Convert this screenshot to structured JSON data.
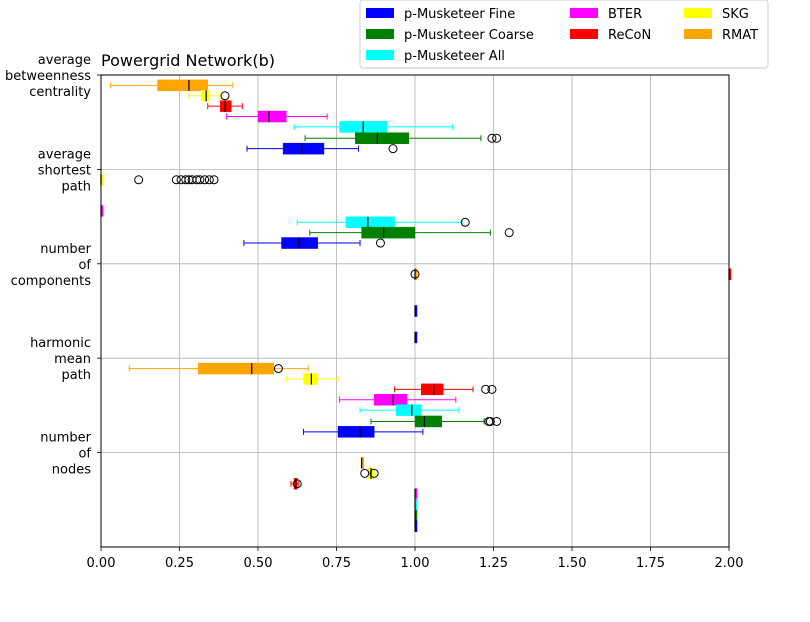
{
  "chart_data": {
    "type": "boxplot",
    "title": "Powergrid Network(b)",
    "xlim": [
      0,
      2.0
    ],
    "xticks": [
      "0.00",
      "0.25",
      "0.50",
      "0.75",
      "1.00",
      "1.25",
      "1.50",
      "1.75",
      "2.00"
    ],
    "xtick_values": [
      0,
      0.25,
      0.5,
      0.75,
      1.0,
      1.25,
      1.5,
      1.75,
      2.0
    ],
    "grid": true,
    "legend_position": "top-right",
    "legend": [
      {
        "name": "p-Musketeer Fine",
        "color": "#0000ff"
      },
      {
        "name": "p-Musketeer Coarse",
        "color": "#008000"
      },
      {
        "name": "p-Musketeer All",
        "color": "#00ffff"
      },
      {
        "name": "BTER",
        "color": "#ff00ff"
      },
      {
        "name": "ReCoN",
        "color": "#ff0000"
      },
      {
        "name": "SKG",
        "color": "#ffff00"
      },
      {
        "name": "RMAT",
        "color": "#ffa500"
      }
    ],
    "categories": [
      {
        "lines": [
          "average",
          "betweenness",
          "centrality"
        ],
        "pos": 0
      },
      {
        "lines": [
          "average",
          "shortest",
          "path"
        ],
        "pos": 1
      },
      {
        "lines": [
          "number",
          "of",
          "components"
        ],
        "pos": 2
      },
      {
        "lines": [
          "harmonic",
          "mean",
          "path"
        ],
        "pos": 3
      },
      {
        "lines": [
          "number",
          "of",
          "nodes"
        ],
        "pos": 4
      }
    ],
    "series": [
      {
        "category": 0,
        "offset": 0.11,
        "color": "#ffa500",
        "q1": 0.18,
        "median": 0.28,
        "q3": 0.34,
        "whislo": 0.03,
        "whishi": 0.42,
        "fliers": []
      },
      {
        "category": 0,
        "offset": 0.22,
        "color": "#ffff00",
        "q1": 0.32,
        "median": 0.335,
        "q3": 0.345,
        "whislo": 0.28,
        "whishi": 0.38,
        "fliers": [
          0.395
        ]
      },
      {
        "category": 0,
        "offset": 0.33,
        "color": "#ff0000",
        "q1": 0.38,
        "median": 0.395,
        "q3": 0.415,
        "whislo": 0.34,
        "whishi": 0.45,
        "fliers": []
      },
      {
        "category": 0,
        "offset": 0.44,
        "color": "#ff00ff",
        "q1": 0.5,
        "median": 0.535,
        "q3": 0.59,
        "whislo": 0.4,
        "whishi": 0.72,
        "fliers": []
      },
      {
        "category": 0,
        "offset": 0.55,
        "color": "#00ffff",
        "q1": 0.76,
        "median": 0.835,
        "q3": 0.91,
        "whislo": 0.615,
        "whishi": 1.12,
        "fliers": []
      },
      {
        "category": 0,
        "offset": 0.67,
        "color": "#008000",
        "q1": 0.81,
        "median": 0.88,
        "q3": 0.98,
        "whislo": 0.65,
        "whishi": 1.21,
        "fliers": [
          1.245,
          1.26
        ]
      },
      {
        "category": 0,
        "offset": 0.78,
        "color": "#0000ff",
        "q1": 0.58,
        "median": 0.64,
        "q3": 0.71,
        "whislo": 0.465,
        "whishi": 0.82,
        "fliers": [
          0.93
        ]
      },
      {
        "category": 1,
        "offset": 0.11,
        "color": "#ffa500",
        "q1": 0.0,
        "median": 0.0,
        "q3": 0.0,
        "whislo": 0.0,
        "whishi": 0.0,
        "fliers": []
      },
      {
        "category": 1,
        "offset": 0.11,
        "color": "#ffff00",
        "q1": 0.0,
        "median": 0.0,
        "q3": 0.0,
        "whislo": 0.0,
        "whishi": 0.0,
        "fliers": [
          0.12,
          0.24,
          0.255,
          0.27,
          0.28,
          0.29,
          0.305,
          0.315,
          0.33,
          0.345,
          0.36
        ]
      },
      {
        "category": 1,
        "offset": 0.44,
        "color": "#ff00ff",
        "q1": 0.0,
        "median": 0.0,
        "q3": 0.0,
        "whislo": 0.0,
        "whishi": 0.0,
        "fliers": []
      },
      {
        "category": 1,
        "offset": 0.56,
        "color": "#00ffff",
        "q1": 0.78,
        "median": 0.85,
        "q3": 0.935,
        "whislo": 0.625,
        "whishi": 1.15,
        "fliers": [
          1.16
        ]
      },
      {
        "category": 1,
        "offset": 0.67,
        "color": "#008000",
        "q1": 0.83,
        "median": 0.9,
        "q3": 1.0,
        "whislo": 0.665,
        "whishi": 1.24,
        "fliers": [
          1.3
        ]
      },
      {
        "category": 1,
        "offset": 0.78,
        "color": "#0000ff",
        "q1": 0.575,
        "median": 0.63,
        "q3": 0.69,
        "whislo": 0.455,
        "whishi": 0.825,
        "fliers": [
          0.89
        ]
      },
      {
        "category": 2,
        "offset": 0.11,
        "color": "#ffa500",
        "q1": 1.0,
        "median": 1.0,
        "q3": 1.0,
        "whislo": 1.0,
        "whishi": 1.0,
        "fliers": [
          1.0
        ]
      },
      {
        "category": 2,
        "offset": 0.11,
        "color": "#ff0000",
        "q1": 2.0,
        "median": 2.0,
        "q3": 2.0,
        "whislo": 2.0,
        "whishi": 2.0,
        "fliers": []
      },
      {
        "category": 2,
        "offset": 0.5,
        "color": "#0000ff",
        "q1": 1.0,
        "median": 1.0,
        "q3": 1.0,
        "whislo": 1.0,
        "whishi": 1.0,
        "fliers": []
      },
      {
        "category": 2,
        "offset": 0.78,
        "color": "#0000ff",
        "q1": 1.0,
        "median": 1.0,
        "q3": 1.0,
        "whislo": 1.0,
        "whishi": 1.0,
        "fliers": []
      },
      {
        "category": 3,
        "offset": 0.11,
        "color": "#ffa500",
        "q1": 0.31,
        "median": 0.48,
        "q3": 0.55,
        "whislo": 0.09,
        "whishi": 0.66,
        "fliers": [
          0.565
        ]
      },
      {
        "category": 3,
        "offset": 0.22,
        "color": "#ffff00",
        "q1": 0.645,
        "median": 0.67,
        "q3": 0.69,
        "whislo": 0.59,
        "whishi": 0.755,
        "fliers": []
      },
      {
        "category": 3,
        "offset": 0.33,
        "color": "#ff0000",
        "q1": 1.02,
        "median": 1.06,
        "q3": 1.09,
        "whislo": 0.935,
        "whishi": 1.185,
        "fliers": [
          1.225,
          1.245
        ]
      },
      {
        "category": 3,
        "offset": 0.44,
        "color": "#ff00ff",
        "q1": 0.87,
        "median": 0.93,
        "q3": 0.975,
        "whislo": 0.76,
        "whishi": 1.13,
        "fliers": []
      },
      {
        "category": 3,
        "offset": 0.55,
        "color": "#00ffff",
        "q1": 0.94,
        "median": 0.99,
        "q3": 1.02,
        "whislo": 0.825,
        "whishi": 1.14,
        "fliers": []
      },
      {
        "category": 3,
        "offset": 0.67,
        "color": "#008000",
        "q1": 1.0,
        "median": 1.03,
        "q3": 1.085,
        "whislo": 0.86,
        "whishi": 1.22,
        "fliers": [
          1.235,
          1.24,
          1.26
        ]
      },
      {
        "category": 3,
        "offset": 0.78,
        "color": "#0000ff",
        "q1": 0.755,
        "median": 0.825,
        "q3": 0.87,
        "whislo": 0.645,
        "whishi": 1.025,
        "fliers": []
      },
      {
        "category": 4,
        "offset": 0.11,
        "color": "#ffa500",
        "q1": 0.83,
        "median": 0.83,
        "q3": 0.83,
        "whislo": 0.83,
        "whishi": 0.83,
        "fliers": []
      },
      {
        "category": 4,
        "offset": 0.22,
        "color": "#ffff00",
        "q1": 0.85,
        "median": 0.86,
        "q3": 0.87,
        "whislo": 0.85,
        "whishi": 0.87,
        "fliers": [
          0.84,
          0.87
        ]
      },
      {
        "category": 4,
        "offset": 0.33,
        "color": "#ff0000",
        "q1": 0.615,
        "median": 0.62,
        "q3": 0.625,
        "whislo": 0.605,
        "whishi": 0.63,
        "fliers": [
          0.625
        ]
      },
      {
        "category": 4,
        "offset": 0.44,
        "color": "#ff00ff",
        "q1": 1.0,
        "median": 1.0,
        "q3": 1.0,
        "whislo": 1.0,
        "whishi": 1.0,
        "fliers": []
      },
      {
        "category": 4,
        "offset": 0.55,
        "color": "#00ffff",
        "q1": 1.0,
        "median": 1.0,
        "q3": 1.0,
        "whislo": 1.0,
        "whishi": 1.0,
        "fliers": []
      },
      {
        "category": 4,
        "offset": 0.67,
        "color": "#008000",
        "q1": 1.0,
        "median": 1.0,
        "q3": 1.0,
        "whislo": 1.0,
        "whishi": 1.0,
        "fliers": []
      },
      {
        "category": 4,
        "offset": 0.78,
        "color": "#0000ff",
        "q1": 1.0,
        "median": 1.0,
        "q3": 1.0,
        "whislo": 1.0,
        "whishi": 1.0,
        "fliers": []
      }
    ]
  }
}
